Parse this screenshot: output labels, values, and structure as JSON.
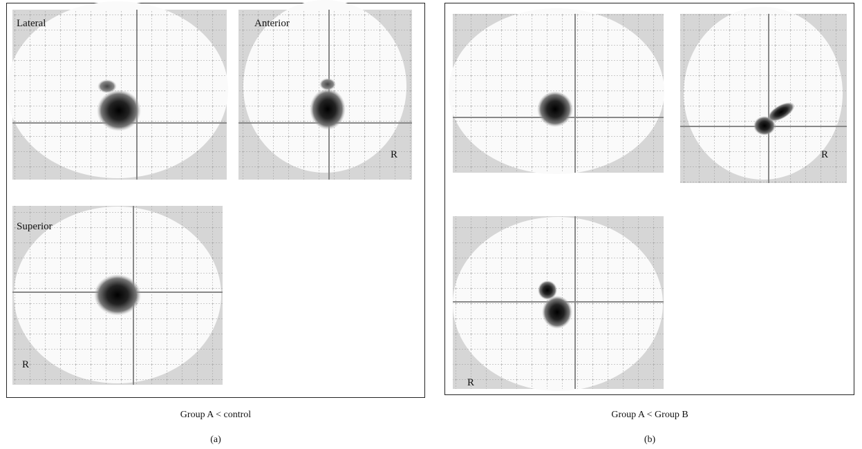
{
  "panels": [
    {
      "caption": "Group A < control",
      "label": "(a)",
      "views": {
        "lateral": "Lateral",
        "anterior": "Anterior",
        "superior": "Superior",
        "anterior_side": "R",
        "superior_side": "R"
      }
    },
    {
      "caption": "Group A < Group B",
      "label": "(b)",
      "views": {
        "anterior_side": "R",
        "superior_side": "R"
      }
    }
  ]
}
